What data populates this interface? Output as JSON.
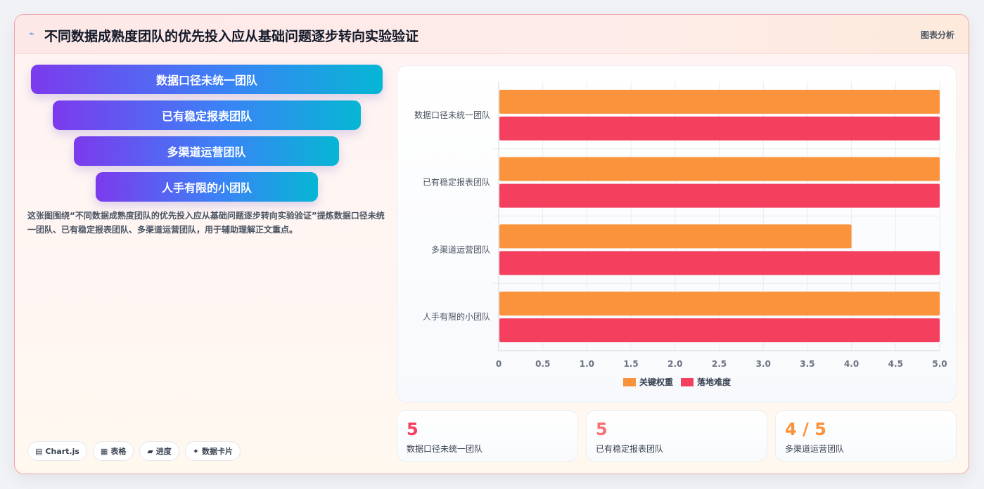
{
  "header": {
    "icon": "pulse-icon",
    "title": "不同数据成熟度团队的优先投入应从基础问题逐步转向实验验证",
    "right_label": "图表分析"
  },
  "funnel": {
    "items": [
      {
        "label": "数据口径未统一团队"
      },
      {
        "label": "已有稳定报表团队"
      },
      {
        "label": "多渠道运营团队"
      },
      {
        "label": "人手有限的小团队"
      }
    ]
  },
  "description": "这张图围绕“不同数据成熟度团队的优先投入应从基础问题逐步转向实验验证”提炼数据口径未统一团队、已有稳定报表团队、多渠道运营团队，用于辅助理解正文重点。",
  "tags": [
    {
      "icon": "chart-icon",
      "label": "Chart.js"
    },
    {
      "icon": "table-icon",
      "label": "表格"
    },
    {
      "icon": "progress-icon",
      "label": "进度"
    },
    {
      "icon": "sparkle-icon",
      "label": "数据卡片"
    }
  ],
  "stats": [
    {
      "value": "5",
      "label": "数据口径未统一团队",
      "color": "#f43f5e"
    },
    {
      "value": "5",
      "label": "已有稳定报表团队",
      "color": "#f87171"
    },
    {
      "value": "4 / 5",
      "label": "多渠道运营团队",
      "color": "#fb923c"
    }
  ],
  "chart_data": {
    "type": "bar",
    "orientation": "horizontal",
    "categories": [
      "数据口径未统一团队",
      "已有稳定报表团队",
      "多渠道运营团队",
      "人手有限的小团队"
    ],
    "series": [
      {
        "name": "关键权重",
        "values": [
          5,
          5,
          4,
          5
        ],
        "color": "#fb923c"
      },
      {
        "name": "落地难度",
        "values": [
          5,
          5,
          5,
          5
        ],
        "color": "#f43f5e"
      }
    ],
    "xlim": [
      0,
      5
    ],
    "xticks": [
      "0",
      "0.5",
      "1.0",
      "1.5",
      "2.0",
      "2.5",
      "3.0",
      "3.5",
      "4.0",
      "4.5",
      "5.0"
    ],
    "grid": true,
    "legend": "bottom-center"
  }
}
